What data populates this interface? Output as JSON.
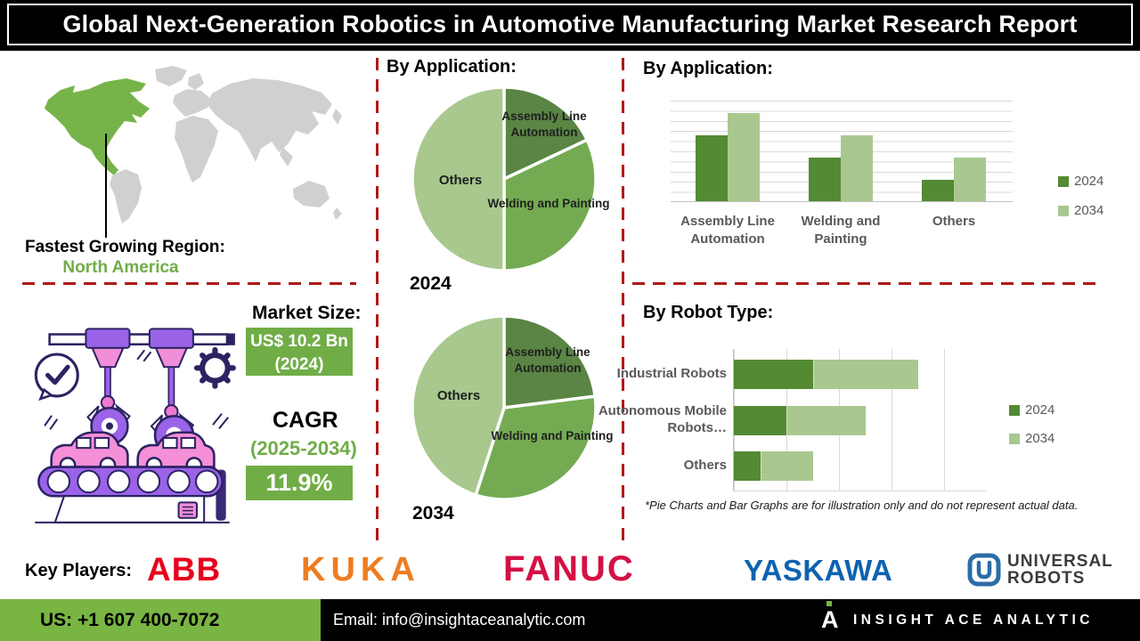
{
  "header": {
    "title": "Global Next-Generation Robotics in Automotive Manufacturing Market Research Report"
  },
  "region": {
    "label": "Fastest Growing Region:",
    "value": "North America"
  },
  "market": {
    "size_label": "Market Size:",
    "size_value": "US$ 10.2 Bn",
    "size_year": "(2024)",
    "cagr_label": "CAGR",
    "cagr_period": "(2025-2034)",
    "cagr_value": "11.9%"
  },
  "chart_data": [
    {
      "type": "pie",
      "title": "By Application:",
      "year_label": "2024",
      "labels": [
        "Assembly Line Automation",
        "Welding and Painting",
        "Others"
      ],
      "values_percent": [
        18,
        32,
        50
      ],
      "colors": [
        "#5a8544",
        "#74ab52",
        "#a8c88e"
      ],
      "legend_position": "none"
    },
    {
      "type": "pie",
      "title": "By Application:",
      "year_label": "2034",
      "labels": [
        "Assembly Line Automation",
        "Welding and Painting",
        "Others"
      ],
      "values_percent": [
        23,
        32,
        45
      ],
      "colors": [
        "#5a8544",
        "#74ab52",
        "#a8c88e"
      ],
      "legend_position": "none"
    },
    {
      "type": "bar",
      "title": "By Application:",
      "categories": [
        "Assembly Line Automation",
        "Welding and Painting",
        "Others"
      ],
      "series": [
        {
          "name": "2024",
          "values": [
            6.5,
            4.3,
            2.1
          ],
          "color": "#538a33"
        },
        {
          "name": "2034",
          "values": [
            8.7,
            6.5,
            4.3
          ],
          "color": "#a9c88f"
        }
      ],
      "ylim": [
        0,
        10
      ],
      "grid": true,
      "legend_position": "right"
    },
    {
      "type": "stacked-hbar",
      "title": "By Robot Type:",
      "categories": [
        "Industrial Robots",
        "Autonomous Mobile Robots…",
        "Others"
      ],
      "series": [
        {
          "name": "2024",
          "values": [
            1.5,
            1.0,
            0.5
          ],
          "color": "#538a33"
        },
        {
          "name": "2034",
          "values": [
            2.0,
            1.5,
            1.0
          ],
          "color": "#a9c88f"
        }
      ],
      "xlim": [
        0,
        4.8
      ],
      "grid": true,
      "legend_position": "right"
    }
  ],
  "disclaimer": "*Pie Charts and Bar Graphs are for illustration only and do not represent actual data.",
  "key_players": {
    "label": "Key Players:",
    "abb": "ABB",
    "kuka": "KUKA",
    "fanuc": "FANUC",
    "yaskawa": "YASKAWA",
    "ur_line1": "UNIVERSAL",
    "ur_line2": "ROBOTS"
  },
  "footer": {
    "phone": "US: +1 607 400-7072",
    "email": "Email: info@insightaceanalytic.com",
    "brand": "INSIGHT ACE ANALYTIC",
    "brand_glyph": "A"
  },
  "colors": {
    "accent_green": "#70ad47",
    "map_green": "#76b44a",
    "map_gray": "#d0d0d0",
    "dash_red": "#ae1917",
    "footer_green": "#79b543",
    "abb_red": "#e8001c",
    "kuka_orange": "#ee7d21",
    "fanuc_red": "#d31145",
    "yaskawa_blue": "#0e63b0",
    "ur_blue": "#2b6da8"
  }
}
